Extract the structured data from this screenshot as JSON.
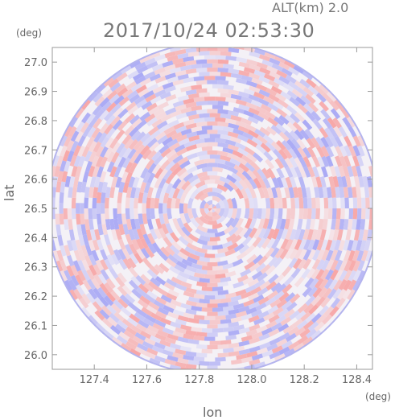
{
  "header": {
    "altitude_text": "ALT(km) 2.0",
    "timestamp": "2017/10/24 02:53:30"
  },
  "chart_data": {
    "type": "heatmap",
    "xlabel": "lon",
    "ylabel": "lat",
    "x_unit": "(deg)",
    "y_unit": "(deg)",
    "xlim": [
      127.24,
      128.46
    ],
    "ylim": [
      25.95,
      27.05
    ],
    "x_ticks": [
      "127.4",
      "127.6",
      "127.8",
      "128.0",
      "128.2",
      "128.4"
    ],
    "y_ticks": [
      "26.0",
      "26.1",
      "26.2",
      "26.3",
      "26.4",
      "26.5",
      "26.6",
      "26.7",
      "26.8",
      "26.9",
      "27.0"
    ],
    "center": {
      "lon": 127.85,
      "lat": 26.5
    },
    "colors": {
      "positive": "#f7a3a3",
      "negative": "#a7a7f5",
      "neutral": "#f4f1f6",
      "axis": "#999999"
    }
  }
}
